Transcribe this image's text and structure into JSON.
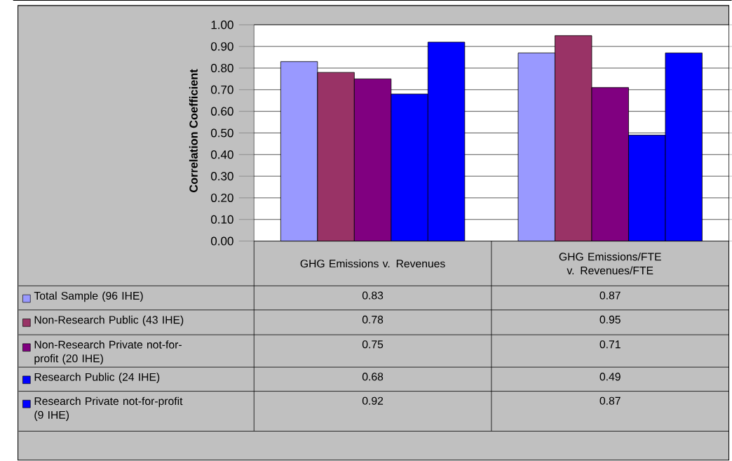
{
  "chart_data": {
    "type": "bar",
    "ylabel": "Correlation Coefficient",
    "categories": [
      "GHG Emissions v. Revenues",
      "GHG Emissions/FTE v. Revenues/FTE"
    ],
    "series": [
      {
        "name": "Total Sample (96 IHE)",
        "color": "#9999ff",
        "values": [
          0.83,
          0.87
        ]
      },
      {
        "name": "Non-Research Public (43 IHE)",
        "color": "#993366",
        "values": [
          0.78,
          0.95
        ]
      },
      {
        "name": "Non-Research Private not-for-profit (20 IHE)",
        "color": "#800080",
        "values": [
          0.75,
          0.71
        ]
      },
      {
        "name": "Research Public (24 IHE)",
        "color": "#0000ff",
        "values": [
          0.68,
          0.49
        ]
      },
      {
        "name": "Research Private not-for-profit (9 IHE)",
        "color": "#0000ff",
        "values": [
          0.92,
          0.87
        ]
      }
    ],
    "ylim": [
      0,
      1
    ],
    "yticks": [
      {
        "value": 0,
        "label": "0.00"
      },
      {
        "value": 0.1,
        "label": "0.10"
      },
      {
        "value": 0.2,
        "label": "0.20"
      },
      {
        "value": 0.3,
        "label": "0.30"
      },
      {
        "value": 0.4,
        "label": "0.40"
      },
      {
        "value": 0.5,
        "label": "0.50"
      },
      {
        "value": 0.6,
        "label": "0.60"
      },
      {
        "value": 0.7,
        "label": "0.70"
      },
      {
        "value": 0.8,
        "label": "0.80"
      },
      {
        "value": 0.9,
        "label": "0.90"
      },
      {
        "value": 1,
        "label": "1.00"
      }
    ],
    "grid": "y",
    "legend": "bottom",
    "data_labels": true
  }
}
